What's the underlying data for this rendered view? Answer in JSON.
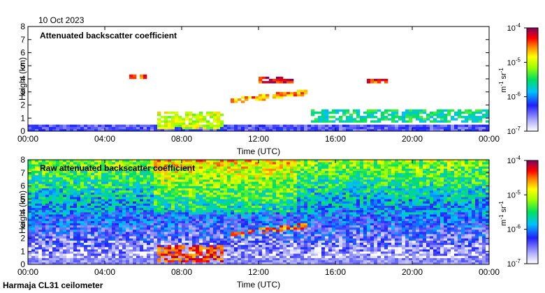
{
  "date_label": "10 Oct 2023",
  "footer_label": "Harmaja CL31 ceilometer",
  "chart_data": [
    {
      "type": "heatmap",
      "title": "Attenuated backscatter coefficient",
      "xlabel": "Time (UTC)",
      "ylabel": "Height (km)",
      "x_ticks": [
        "00:00",
        "04:00",
        "08:00",
        "12:00",
        "16:00",
        "20:00",
        "00:00"
      ],
      "x_range_hours": [
        0,
        24
      ],
      "y_ticks": [
        "0",
        "1",
        "2",
        "3",
        "4",
        "5",
        "6",
        "7",
        "8"
      ],
      "ylim": [
        0,
        8
      ],
      "colorbar": {
        "ticks": [
          "10",
          "10",
          "10",
          "10"
        ],
        "exponents": [
          "-4",
          "-5",
          "-6",
          "-7"
        ],
        "label_base": "m",
        "label_sup1": "-1",
        "label_mid": " sr",
        "label_sup2": "-1",
        "range_log10": [
          -7,
          -4
        ]
      },
      "features": [
        {
          "name": "elevated layer",
          "start_h": 5.2,
          "end_h": 6.1,
          "height_km": 4.2,
          "level": -4.5
        },
        {
          "name": "cloud layer",
          "start_h": 10.6,
          "end_h": 14.6,
          "height_km_start": 2.3,
          "height_km_end": 3.0,
          "level": -4.6
        },
        {
          "name": "upper layer",
          "start_h": 12.0,
          "end_h": 13.8,
          "height_km": 3.9,
          "level": -4.3
        },
        {
          "name": "boundary layer",
          "start_h": 6.8,
          "end_h": 10.2,
          "height_km": 0.8,
          "level": -5.0
        },
        {
          "name": "low clouds",
          "start_h": 14.8,
          "end_h": 24.0,
          "height_km": 1.2,
          "level": -5.6
        },
        {
          "name": "elevated layer",
          "start_h": 17.6,
          "end_h": 18.8,
          "height_km": 3.8,
          "level": -4.4
        }
      ]
    },
    {
      "type": "heatmap",
      "title": "Raw attenuated backscatter coefficient",
      "xlabel": "Time (UTC)",
      "ylabel": "Height (km)",
      "x_ticks": [
        "00:00",
        "04:00",
        "08:00",
        "12:00",
        "16:00",
        "20:00",
        "00:00"
      ],
      "x_range_hours": [
        0,
        24
      ],
      "y_ticks": [
        "0",
        "1",
        "2",
        "3",
        "4",
        "5",
        "6",
        "7",
        "8"
      ],
      "ylim": [
        0,
        8
      ],
      "colorbar": {
        "ticks": [
          "10",
          "10",
          "10",
          "10"
        ],
        "exponents": [
          "-4",
          "-5",
          "-6",
          "-7"
        ],
        "label_base": "m",
        "label_sup1": "-1",
        "label_mid": " sr",
        "label_sup2": "-1",
        "range_log10": [
          -7,
          -4
        ]
      },
      "features": [
        {
          "name": "noisy upper region",
          "start_h": 0,
          "end_h": 24,
          "height_km": 6.5,
          "level": -5.2
        },
        {
          "name": "cloud layer",
          "start_h": 10.6,
          "end_h": 14.6,
          "height_km_start": 2.3,
          "height_km_end": 3.0,
          "level": -4.5
        },
        {
          "name": "boundary layer",
          "start_h": 6.8,
          "end_h": 10.2,
          "height_km": 0.8,
          "level": -4.4
        }
      ]
    }
  ]
}
